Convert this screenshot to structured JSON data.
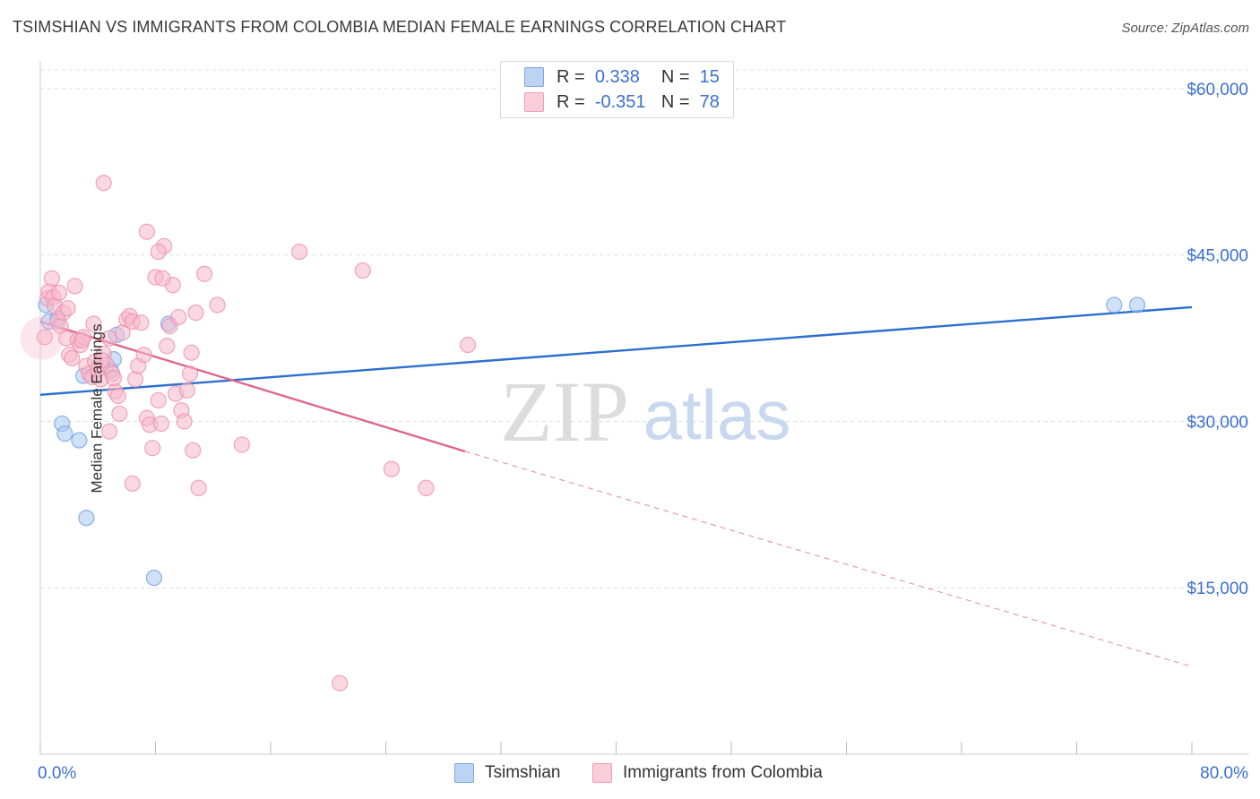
{
  "header": {
    "title": "TSIMSHIAN VS IMMIGRANTS FROM COLOMBIA MEDIAN FEMALE EARNINGS CORRELATION CHART",
    "source": "Source: ZipAtlas.com"
  },
  "legend": {
    "rows": [
      {
        "r_label": "R =",
        "r_value": "0.338",
        "n_label": "N =",
        "n_value": "15",
        "color": "#a8c8f0"
      },
      {
        "r_label": "R =",
        "r_value": "-0.351",
        "n_label": "N =",
        "n_value": "78",
        "color": "#f6b8cb"
      }
    ]
  },
  "watermark": {
    "zip": "ZIP",
    "atlas": "atlas"
  },
  "chart_data": {
    "type": "scatter",
    "title": "TSIMSHIAN VS IMMIGRANTS FROM COLOMBIA MEDIAN FEMALE EARNINGS CORRELATION CHART",
    "xlabel": "",
    "ylabel": "Median Female Earnings",
    "xlim": [
      0,
      80
    ],
    "ylim": [
      0,
      62500
    ],
    "x_tick_labels": [
      "0.0%",
      "80.0%"
    ],
    "y_ticks": [
      15000,
      30000,
      45000,
      60000
    ],
    "y_tick_labels": [
      "$15,000",
      "$30,000",
      "$45,000",
      "$60,000"
    ],
    "grid": true,
    "series": [
      {
        "name": "Tsimshian",
        "color": "#6fa0e6",
        "fill": "#a8c8f0",
        "line_color": "#2d6fcf",
        "trend": {
          "x0": 0,
          "y0": 32400,
          "x1": 80,
          "y1": 40300
        },
        "points": [
          [
            0.4,
            40500
          ],
          [
            0.6,
            39000
          ],
          [
            1.2,
            39300
          ],
          [
            1.5,
            29800
          ],
          [
            1.7,
            28900
          ],
          [
            2.7,
            28300
          ],
          [
            3.0,
            34100
          ],
          [
            3.2,
            21300
          ],
          [
            5.3,
            37800
          ],
          [
            5.1,
            35600
          ],
          [
            4.9,
            34600
          ],
          [
            7.9,
            15900
          ],
          [
            8.9,
            38800
          ],
          [
            74.6,
            40500
          ],
          [
            76.2,
            40500
          ]
        ]
      },
      {
        "name": "Immigrants from Colombia",
        "color": "#ee8fad",
        "fill": "#f6b8cb",
        "line_color": "#e0668e",
        "trend": {
          "x0": 0,
          "y0": 39000,
          "x1": 29.5,
          "y1": 27300
        },
        "trend_dashed": {
          "x0": 29.5,
          "y0": 27300,
          "x1": 80,
          "y1": 7900
        },
        "points": [
          [
            0.3,
            37600
          ],
          [
            0.5,
            41100
          ],
          [
            0.6,
            41700
          ],
          [
            0.8,
            42900
          ],
          [
            0.9,
            41200
          ],
          [
            1.0,
            40400
          ],
          [
            1.2,
            39000
          ],
          [
            1.3,
            41600
          ],
          [
            1.4,
            38600
          ],
          [
            1.6,
            39800
          ],
          [
            1.8,
            37500
          ],
          [
            2.0,
            36000
          ],
          [
            2.2,
            35700
          ],
          [
            2.4,
            42200
          ],
          [
            2.6,
            37300
          ],
          [
            2.8,
            36900
          ],
          [
            3.0,
            37600
          ],
          [
            3.2,
            35000
          ],
          [
            3.4,
            34300
          ],
          [
            3.6,
            34000
          ],
          [
            3.8,
            35400
          ],
          [
            4.0,
            34700
          ],
          [
            4.2,
            33800
          ],
          [
            4.4,
            36100
          ],
          [
            4.6,
            35100
          ],
          [
            4.8,
            37500
          ],
          [
            5.0,
            34300
          ],
          [
            5.2,
            32700
          ],
          [
            5.4,
            32300
          ],
          [
            5.5,
            30700
          ],
          [
            5.7,
            38000
          ],
          [
            6.0,
            39200
          ],
          [
            6.2,
            39500
          ],
          [
            6.4,
            39000
          ],
          [
            6.6,
            33800
          ],
          [
            6.8,
            35000
          ],
          [
            7.0,
            38900
          ],
          [
            7.2,
            36000
          ],
          [
            7.4,
            30300
          ],
          [
            7.6,
            29700
          ],
          [
            7.8,
            27600
          ],
          [
            8.0,
            43000
          ],
          [
            8.2,
            31900
          ],
          [
            8.4,
            29800
          ],
          [
            8.6,
            45800
          ],
          [
            8.8,
            36800
          ],
          [
            9.0,
            38600
          ],
          [
            9.2,
            42300
          ],
          [
            9.4,
            32500
          ],
          [
            9.6,
            39400
          ],
          [
            9.8,
            31000
          ],
          [
            10.0,
            30000
          ],
          [
            10.2,
            32800
          ],
          [
            10.4,
            34300
          ],
          [
            10.6,
            27400
          ],
          [
            10.8,
            39800
          ],
          [
            11.0,
            24000
          ],
          [
            11.4,
            43300
          ],
          [
            7.4,
            47100
          ],
          [
            8.2,
            45300
          ],
          [
            4.4,
            51500
          ],
          [
            12.3,
            40500
          ],
          [
            14.0,
            27900
          ],
          [
            18.0,
            45300
          ],
          [
            20.8,
            6400
          ],
          [
            22.4,
            43600
          ],
          [
            24.4,
            25700
          ],
          [
            26.8,
            24000
          ],
          [
            29.7,
            36900
          ],
          [
            6.4,
            24400
          ],
          [
            4.8,
            29100
          ],
          [
            5.1,
            33900
          ],
          [
            2.9,
            37300
          ],
          [
            10.5,
            36200
          ],
          [
            3.7,
            38800
          ],
          [
            1.9,
            40200
          ],
          [
            8.5,
            42900
          ],
          [
            4.3,
            35500
          ]
        ]
      }
    ]
  },
  "bottom_legend": {
    "items": [
      {
        "label": "Tsimshian",
        "color": "#a8c8f0"
      },
      {
        "label": "Immigrants from Colombia",
        "color": "#f6b8cb"
      }
    ]
  }
}
